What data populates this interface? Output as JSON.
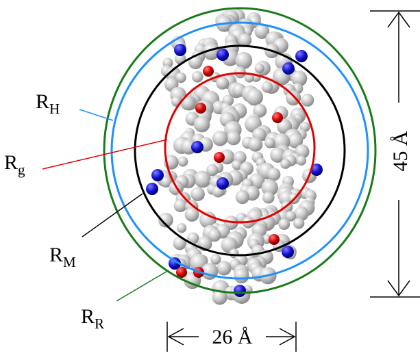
{
  "radii": [
    {
      "key": "H",
      "letter": "R",
      "sub": "H",
      "color": "#1e90ff"
    },
    {
      "key": "g",
      "letter": "R",
      "sub": "g",
      "color": "#e00000"
    },
    {
      "key": "M",
      "letter": "R",
      "sub": "M",
      "color": "#000000"
    },
    {
      "key": "R",
      "letter": "R",
      "sub": "R",
      "color": "#1a7a1a"
    }
  ],
  "dimensions": {
    "height_label": "45 Å",
    "width_label": "26 Å"
  },
  "molecule": {
    "surface_color": "#c8c8c8",
    "acidic_color": "#d40000",
    "basic_color": "#1010d0"
  }
}
